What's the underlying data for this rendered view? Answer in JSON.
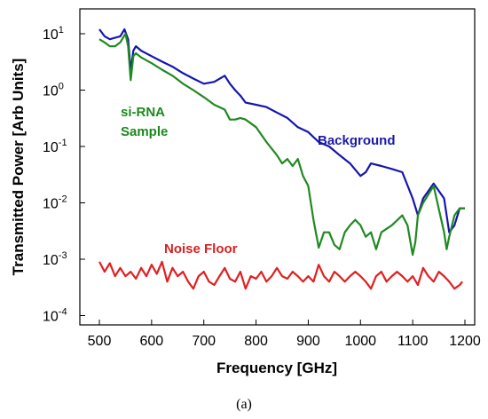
{
  "chart_data": {
    "type": "line",
    "xlabel": "Frequency [GHz]",
    "ylabel": "Transmitted Power [Arb Units]",
    "xlim": [
      500,
      1200
    ],
    "ylim": [
      0.0001,
      30
    ],
    "y_scale": "log",
    "grid": false,
    "legend": "none",
    "x_ticks": [
      "500",
      "600",
      "700",
      "800",
      "900",
      "1000",
      "1100",
      "1200"
    ],
    "y_ticks": [
      {
        "base": "10",
        "exp": "1"
      },
      {
        "base": "10",
        "exp": "0"
      },
      {
        "base": "10",
        "exp": "-1"
      },
      {
        "base": "10",
        "exp": "-2"
      },
      {
        "base": "10",
        "exp": "-3"
      },
      {
        "base": "10",
        "exp": "-4"
      }
    ],
    "annotations": [
      {
        "text": "si-RNA",
        "color": "#1a8a1a"
      },
      {
        "text": "Sample",
        "color": "#1a8a1a"
      },
      {
        "text": "Background",
        "color": "#1a1aa8"
      },
      {
        "text": "Noise Floor",
        "color": "#d82020"
      }
    ],
    "caption": "(a)",
    "series": [
      {
        "color": "#1515b0",
        "x": [
          500,
          510,
          520,
          530,
          540,
          548,
          555,
          560,
          565,
          570,
          580,
          600,
          620,
          640,
          660,
          680,
          700,
          720,
          740,
          750,
          760,
          770,
          780,
          800,
          820,
          840,
          860,
          880,
          900,
          920,
          940,
          960,
          980,
          1000,
          1010,
          1020,
          1040,
          1060,
          1080,
          1100,
          1110,
          1120,
          1140,
          1160,
          1170,
          1180,
          1190,
          1200
        ],
        "y": [
          12,
          9,
          8,
          8.5,
          9,
          12,
          8,
          2.2,
          5,
          6,
          5,
          4,
          3.2,
          2.6,
          2,
          1.6,
          1.3,
          1.4,
          1.8,
          1.3,
          1,
          0.8,
          0.6,
          0.55,
          0.5,
          0.4,
          0.32,
          0.22,
          0.18,
          0.12,
          0.1,
          0.07,
          0.05,
          0.03,
          0.035,
          0.05,
          0.045,
          0.04,
          0.035,
          0.012,
          0.006,
          0.012,
          0.022,
          0.012,
          0.003,
          0.004,
          0.008,
          0.008
        ]
      },
      {
        "color": "#1f8a1f",
        "x": [
          500,
          510,
          520,
          530,
          540,
          550,
          555,
          560,
          565,
          570,
          580,
          600,
          620,
          640,
          660,
          680,
          700,
          720,
          740,
          750,
          760,
          770,
          780,
          800,
          820,
          840,
          850,
          860,
          870,
          880,
          890,
          900,
          910,
          920,
          930,
          940,
          950,
          960,
          970,
          980,
          990,
          1000,
          1010,
          1020,
          1030,
          1040,
          1060,
          1080,
          1090,
          1100,
          1105,
          1110,
          1120,
          1140,
          1160,
          1165,
          1170,
          1180,
          1190,
          1200
        ],
        "y": [
          8,
          7,
          6,
          6,
          7,
          10,
          6,
          1.5,
          4,
          4.5,
          3.8,
          3,
          2.3,
          1.8,
          1.3,
          1,
          0.75,
          0.55,
          0.45,
          0.3,
          0.3,
          0.32,
          0.3,
          0.22,
          0.12,
          0.07,
          0.05,
          0.06,
          0.045,
          0.06,
          0.03,
          0.02,
          0.005,
          0.0016,
          0.003,
          0.003,
          0.0018,
          0.0015,
          0.003,
          0.004,
          0.005,
          0.004,
          0.0025,
          0.003,
          0.0015,
          0.003,
          0.004,
          0.006,
          0.004,
          0.0012,
          0.002,
          0.006,
          0.01,
          0.02,
          0.003,
          0.0015,
          0.0025,
          0.006,
          0.008,
          0.008
        ]
      },
      {
        "color": "#e02020",
        "x": [
          500,
          510,
          520,
          530,
          540,
          550,
          560,
          570,
          580,
          590,
          600,
          610,
          620,
          630,
          640,
          650,
          660,
          670,
          680,
          690,
          700,
          710,
          720,
          730,
          740,
          750,
          760,
          770,
          780,
          790,
          800,
          810,
          820,
          830,
          840,
          850,
          860,
          870,
          880,
          890,
          900,
          910,
          920,
          930,
          940,
          950,
          960,
          970,
          980,
          990,
          1000,
          1010,
          1020,
          1030,
          1040,
          1050,
          1060,
          1070,
          1080,
          1090,
          1100,
          1110,
          1120,
          1130,
          1140,
          1150,
          1160,
          1170,
          1180,
          1190,
          1195
        ],
        "y": [
          0.0009,
          0.0006,
          0.00085,
          0.0005,
          0.0007,
          0.0005,
          0.0006,
          0.00045,
          0.0007,
          0.0005,
          0.0008,
          0.00055,
          0.0009,
          0.0004,
          0.0007,
          0.0005,
          0.0006,
          0.0004,
          0.0003,
          0.0005,
          0.0006,
          0.0004,
          0.00035,
          0.0005,
          0.0007,
          0.00045,
          0.0004,
          0.0006,
          0.0003,
          0.0005,
          0.00045,
          0.0006,
          0.0004,
          0.0005,
          0.0007,
          0.0005,
          0.00045,
          0.0006,
          0.0005,
          0.0004,
          0.0005,
          0.0004,
          0.0008,
          0.0005,
          0.0004,
          0.0006,
          0.0005,
          0.0004,
          0.0005,
          0.0006,
          0.0005,
          0.0004,
          0.0003,
          0.0005,
          0.0006,
          0.0004,
          0.0005,
          0.0006,
          0.0005,
          0.0004,
          0.0005,
          0.00035,
          0.0007,
          0.0005,
          0.0004,
          0.0006,
          0.0005,
          0.0004,
          0.0003,
          0.00035,
          0.0004
        ]
      }
    ]
  }
}
